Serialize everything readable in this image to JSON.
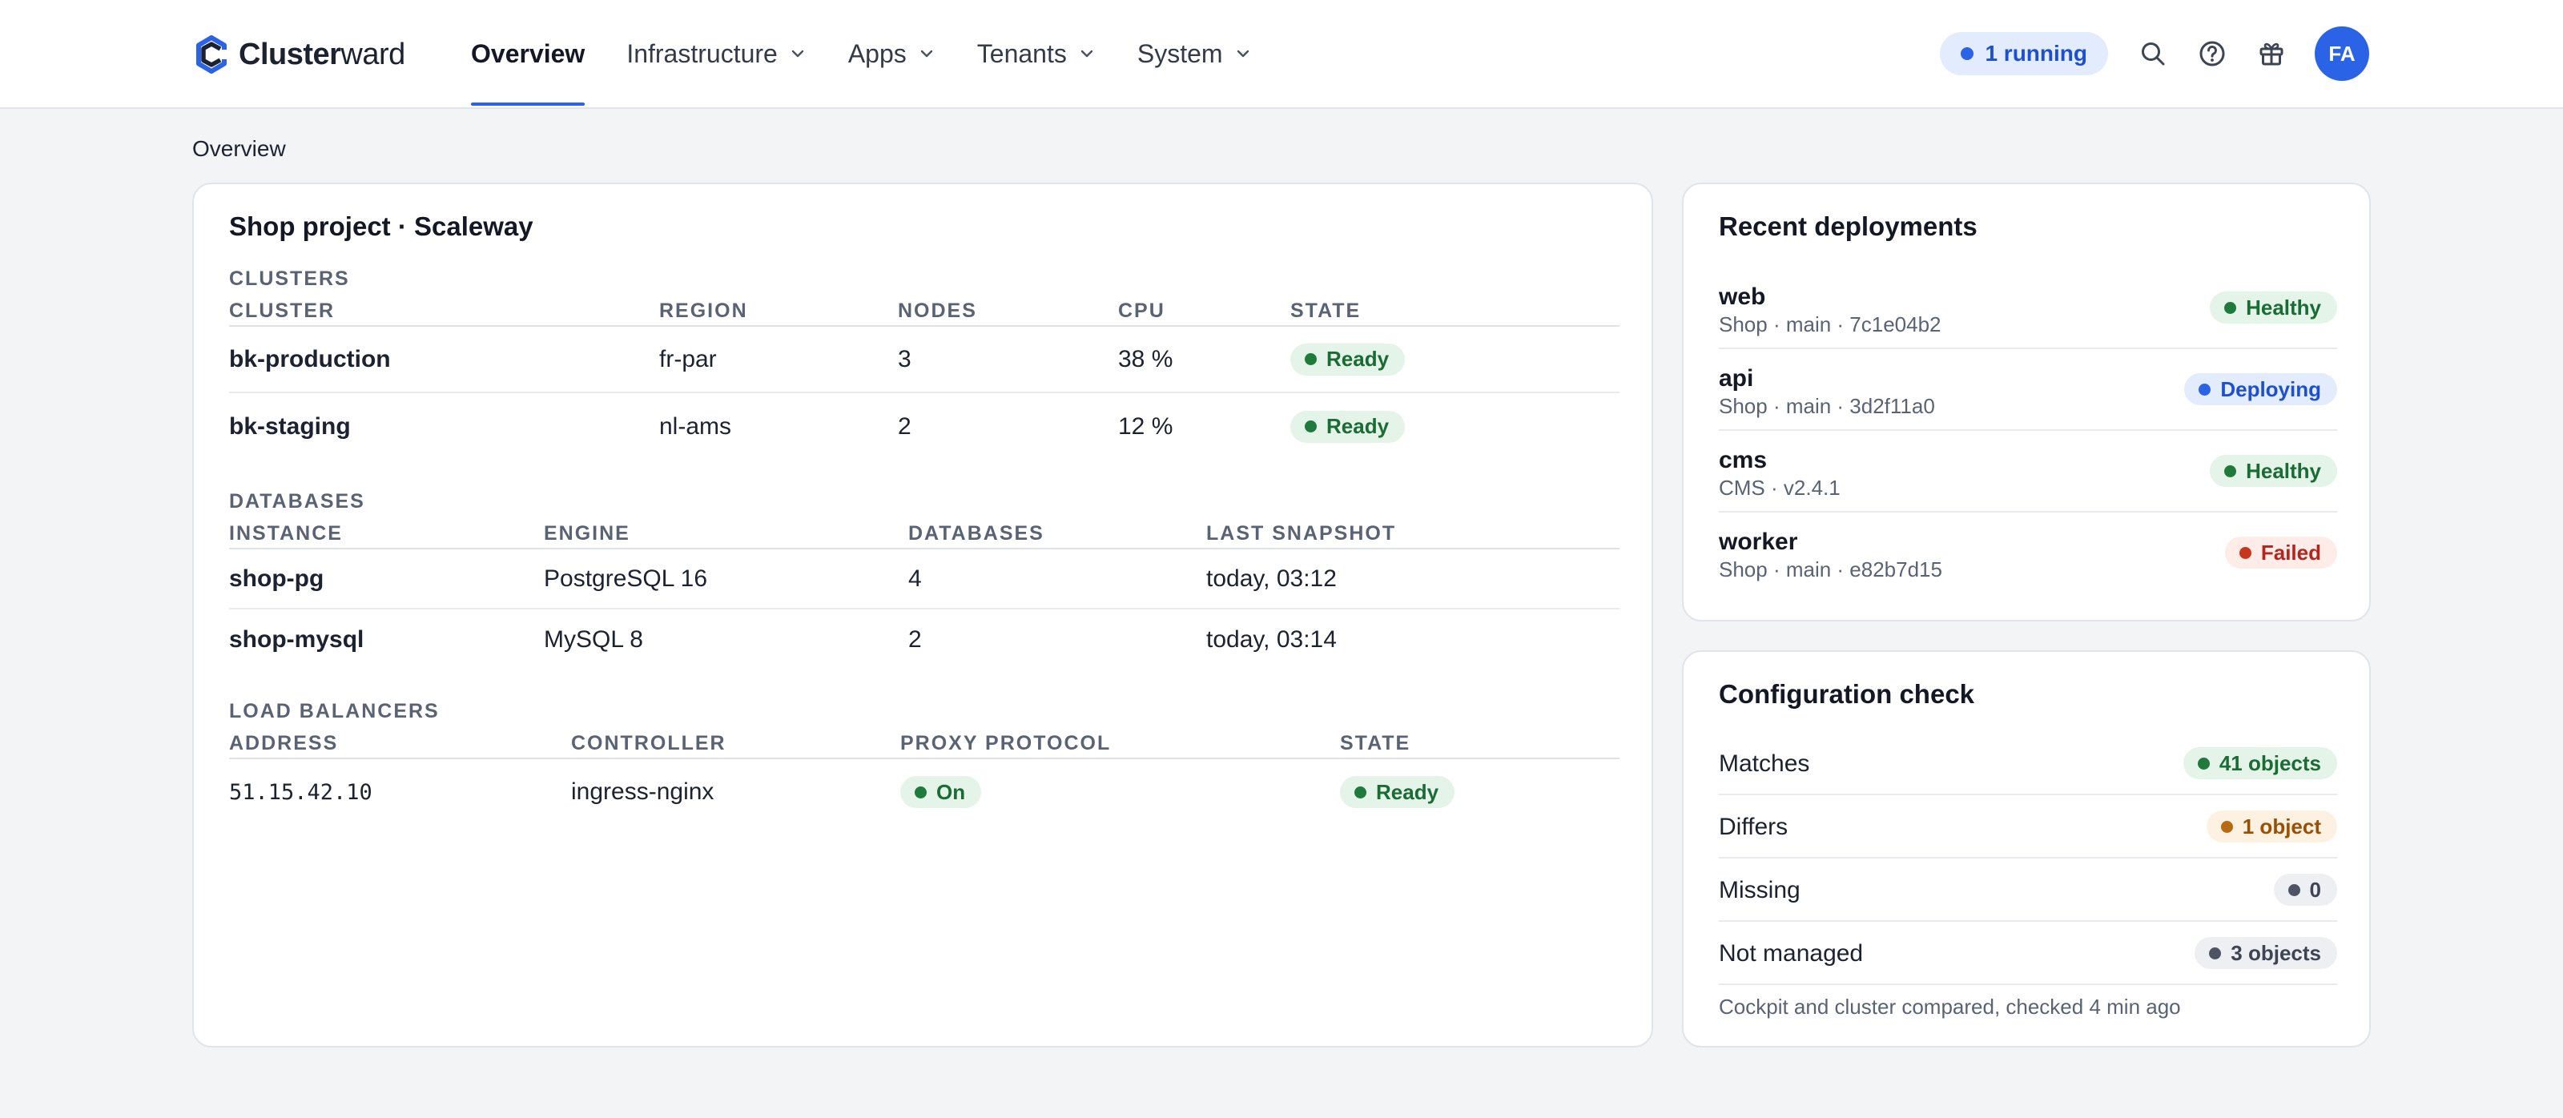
{
  "brand": {
    "name_part1": "Cluster",
    "name_part2": "ward"
  },
  "nav": {
    "items": [
      {
        "label": "Overview",
        "active": true,
        "dropdown": false
      },
      {
        "label": "Infrastructure",
        "active": false,
        "dropdown": true
      },
      {
        "label": "Apps",
        "active": false,
        "dropdown": true
      },
      {
        "label": "Tenants",
        "active": false,
        "dropdown": true
      },
      {
        "label": "System",
        "active": false,
        "dropdown": true
      }
    ]
  },
  "header": {
    "running_label": "1 running",
    "icons": [
      "search-icon",
      "help-icon",
      "gift-icon"
    ],
    "avatar_initials": "FA"
  },
  "breadcrumb": "Overview",
  "project": {
    "title": "Shop project · Scaleway",
    "clusters": {
      "section_label": "CLUSTERS",
      "columns": [
        "CLUSTER",
        "REGION",
        "NODES",
        "CPU",
        "STATE"
      ],
      "rows": [
        {
          "cluster": "bk-production",
          "region": "fr-par",
          "nodes": "3",
          "cpu": "38 %",
          "state": "Ready"
        },
        {
          "cluster": "bk-staging",
          "region": "nl-ams",
          "nodes": "2",
          "cpu": "12 %",
          "state": "Ready"
        }
      ]
    },
    "databases": {
      "section_label": "DATABASES",
      "columns": [
        "INSTANCE",
        "ENGINE",
        "DATABASES",
        "LAST SNAPSHOT"
      ],
      "rows": [
        {
          "instance": "shop-pg",
          "engine": "PostgreSQL 16",
          "databases": "4",
          "last_snapshot": "today, 03:12"
        },
        {
          "instance": "shop-mysql",
          "engine": "MySQL 8",
          "databases": "2",
          "last_snapshot": "today, 03:14"
        }
      ]
    },
    "load_balancers": {
      "section_label": "LOAD BALANCERS",
      "columns": [
        "ADDRESS",
        "CONTROLLER",
        "PROXY PROTOCOL",
        "STATE"
      ],
      "rows": [
        {
          "address": "51.15.42.10",
          "controller": "ingress-nginx",
          "proxy_protocol": "On",
          "state": "Ready"
        }
      ]
    }
  },
  "deployments": {
    "title": "Recent deployments",
    "items": [
      {
        "name": "web",
        "meta": "Shop · main · 7c1e04b2",
        "status": "Healthy",
        "status_color": "#1f7a3c"
      },
      {
        "name": "api",
        "meta": "Shop · main · 3d2f11a0",
        "status": "Deploying",
        "status_color": "#2a63e6"
      },
      {
        "name": "cms",
        "meta": "CMS · v2.4.1",
        "status": "Healthy",
        "status_color": "#1f7a3c"
      },
      {
        "name": "worker",
        "meta": "Shop · main · e82b7d15",
        "status": "Failed",
        "status_color": "#c8351f"
      }
    ]
  },
  "config_check": {
    "title": "Configuration check",
    "items": [
      {
        "label": "Matches",
        "value": "41 objects",
        "status_color": "#1f7a3c"
      },
      {
        "label": "Differs",
        "value": "1 object",
        "status_color": "#b86a12"
      },
      {
        "label": "Missing",
        "value": "0",
        "status_color": "#4d5464"
      },
      {
        "label": "Not managed",
        "value": "3 objects",
        "status_color": "#4d5464"
      }
    ],
    "note": "Cockpit and cluster compared, checked 4 min ago"
  },
  "colors": {
    "accent": "#2a63e6",
    "background": "#f2f4f6"
  }
}
